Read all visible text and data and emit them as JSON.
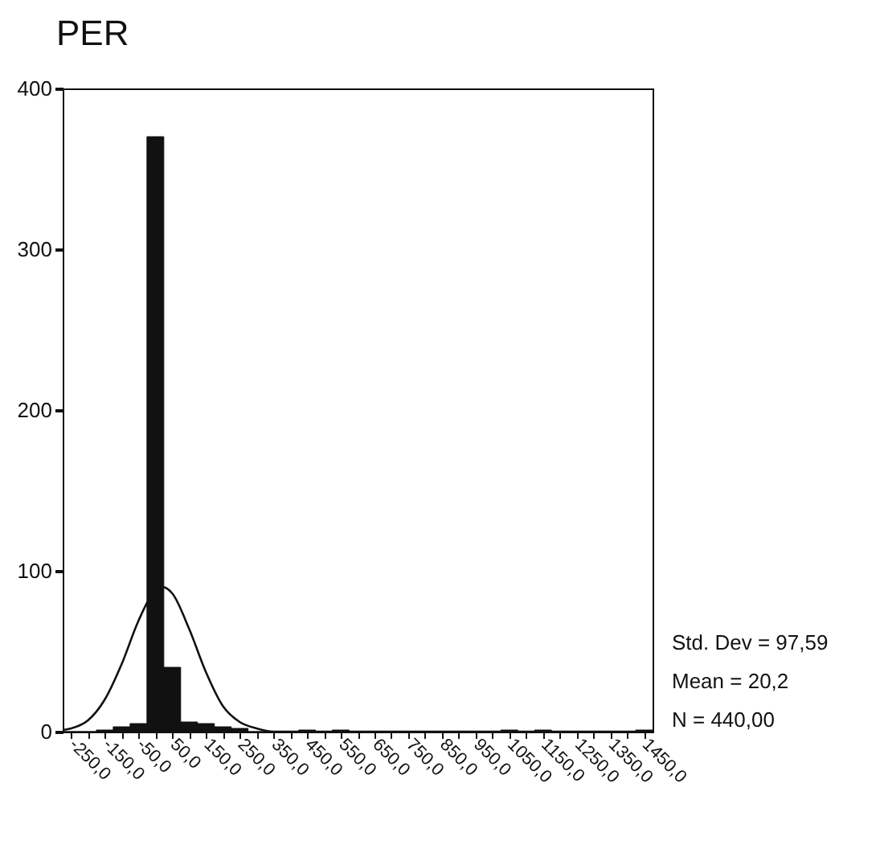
{
  "chart_data": {
    "type": "histogram",
    "title": "PER",
    "bins": [
      -275,
      -225,
      -175,
      -125,
      -75,
      -25,
      25,
      75,
      125,
      175,
      225,
      275,
      325,
      375,
      425,
      475,
      525,
      575,
      625,
      675,
      725,
      775,
      825,
      875,
      925,
      975,
      1025,
      1075,
      1125,
      1175,
      1225,
      1275,
      1325,
      1375,
      1425,
      1475
    ],
    "values": [
      0,
      0,
      1,
      3,
      5,
      370,
      40,
      6,
      5,
      3,
      2,
      0,
      0,
      0,
      1,
      0,
      1,
      0,
      0,
      0,
      0,
      0,
      0,
      0,
      0,
      0,
      1,
      0,
      1,
      0,
      0,
      0,
      0,
      0,
      1
    ],
    "color": "#111111",
    "series": [
      {
        "type": "line",
        "color": "#111111",
        "x": [
          -275,
          -250,
          -200,
          -150,
          -100,
          -50,
          0,
          20,
          50,
          100,
          150,
          200,
          250,
          300,
          350,
          400,
          1475
        ],
        "values": [
          1,
          2,
          7,
          20,
          42,
          69,
          88,
          90,
          86,
          64,
          37,
          16,
          6,
          2,
          0,
          0,
          0
        ]
      }
    ],
    "xlim": [
      -275,
      1475
    ],
    "xticks": [
      {
        "value": -250,
        "label": "-250,0"
      },
      {
        "value": -200,
        "label": null
      },
      {
        "value": -150,
        "label": "-150,0"
      },
      {
        "value": -100,
        "label": null
      },
      {
        "value": -50,
        "label": "-50,0"
      },
      {
        "value": 0,
        "label": null
      },
      {
        "value": 50,
        "label": "50,0"
      },
      {
        "value": 100,
        "label": null
      },
      {
        "value": 150,
        "label": "150,0"
      },
      {
        "value": 200,
        "label": null
      },
      {
        "value": 250,
        "label": "250,0"
      },
      {
        "value": 300,
        "label": null
      },
      {
        "value": 350,
        "label": "350,0"
      },
      {
        "value": 400,
        "label": null
      },
      {
        "value": 450,
        "label": "450,0"
      },
      {
        "value": 500,
        "label": null
      },
      {
        "value": 550,
        "label": "550,0"
      },
      {
        "value": 600,
        "label": null
      },
      {
        "value": 650,
        "label": "650,0"
      },
      {
        "value": 700,
        "label": null
      },
      {
        "value": 750,
        "label": "750,0"
      },
      {
        "value": 800,
        "label": null
      },
      {
        "value": 850,
        "label": "850,0"
      },
      {
        "value": 900,
        "label": null
      },
      {
        "value": 950,
        "label": "950,0"
      },
      {
        "value": 1000,
        "label": null
      },
      {
        "value": 1050,
        "label": "1050,0"
      },
      {
        "value": 1100,
        "label": null
      },
      {
        "value": 1150,
        "label": "1150,0"
      },
      {
        "value": 1200,
        "label": null
      },
      {
        "value": 1250,
        "label": "1250,0"
      },
      {
        "value": 1300,
        "label": null
      },
      {
        "value": 1350,
        "label": "1350,0"
      },
      {
        "value": 1400,
        "label": null
      },
      {
        "value": 1450,
        "label": "1450,0"
      }
    ],
    "ylim": [
      0,
      400
    ],
    "yticks": [
      0,
      100,
      200,
      300,
      400
    ],
    "annotations": [
      "Std. Dev = 97,59",
      "Mean = 20,2",
      "N = 440,00"
    ]
  }
}
